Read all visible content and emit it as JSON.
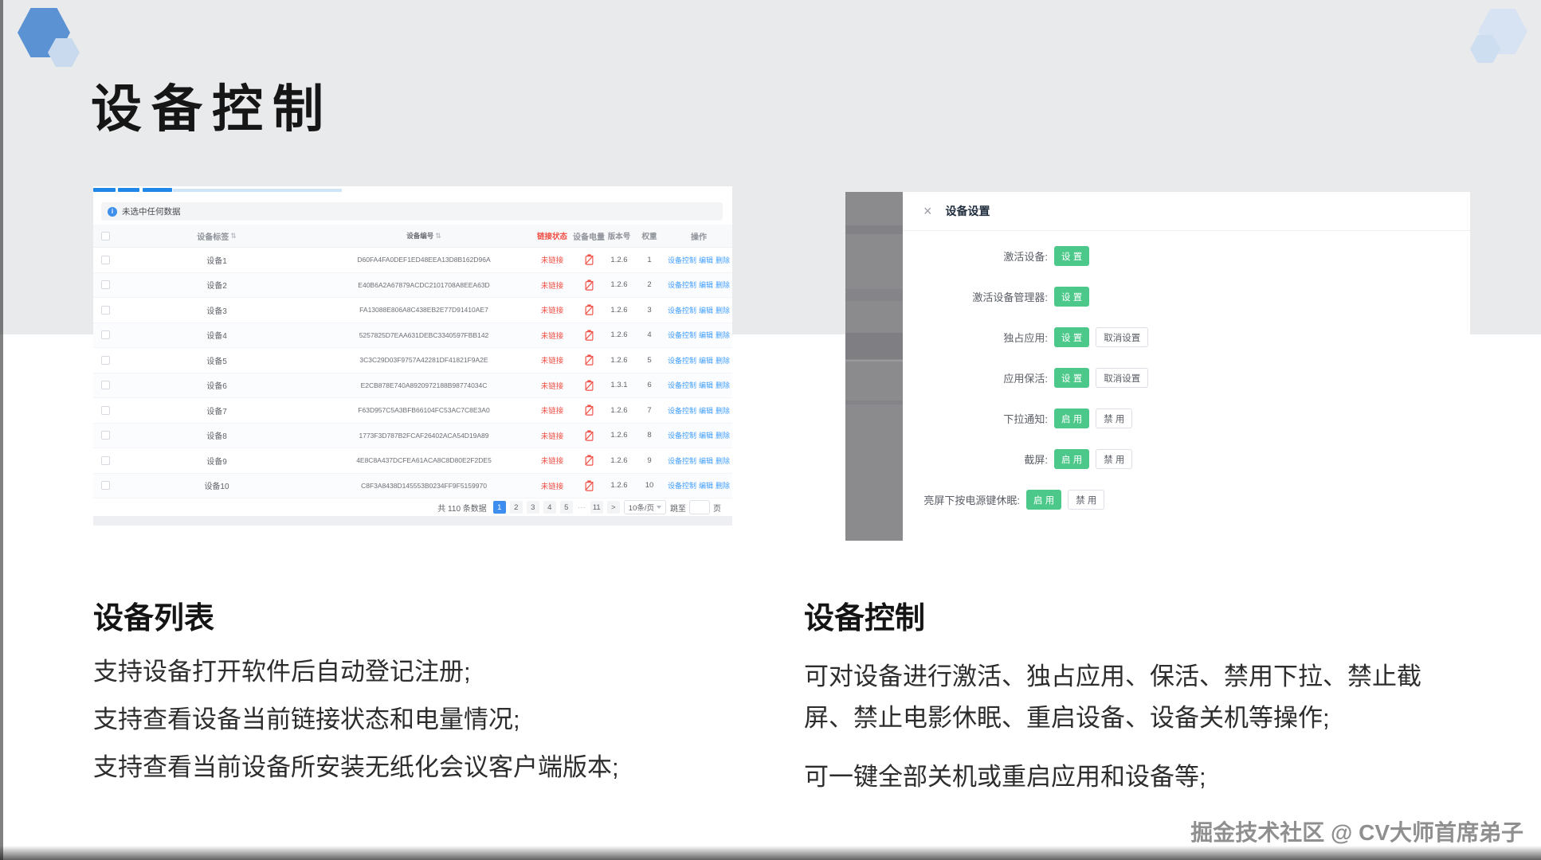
{
  "page": {
    "title": "设备控制",
    "footer": "掘金技术社区 @ CV大师首席弟子"
  },
  "colors": {
    "accent_blue": "#409eff",
    "green": "#4cc98a",
    "red": "#f04f45",
    "tab_blue": "#1e87e8"
  },
  "device_list": {
    "alert_text": "未选中任何数据",
    "columns": [
      "设备标签",
      "设备编号",
      "链接状态",
      "设备电量",
      "版本号",
      "权重",
      "操作"
    ],
    "rows": [
      {
        "label": "设备1",
        "id": "D60FA4FA0DEF1ED48EEA13D8B162D96A",
        "status": "未链接",
        "version": "1.2.6",
        "weight": "1",
        "actions": [
          "设备控制",
          "编辑",
          "删除"
        ]
      },
      {
        "label": "设备2",
        "id": "E40B6A2A67879ACDC2101708A8EEA63D",
        "status": "未链接",
        "version": "1.2.6",
        "weight": "2",
        "actions": [
          "设备控制",
          "编辑",
          "删除"
        ]
      },
      {
        "label": "设备3",
        "id": "FA13088E806A8C438EB2E77D91410AE7",
        "status": "未链接",
        "version": "1.2.6",
        "weight": "3",
        "actions": [
          "设备控制",
          "编辑",
          "删除"
        ]
      },
      {
        "label": "设备4",
        "id": "5257825D7EAA631DEBC3340597FBB142",
        "status": "未链接",
        "version": "1.2.6",
        "weight": "4",
        "actions": [
          "设备控制",
          "编辑",
          "删除"
        ]
      },
      {
        "label": "设备5",
        "id": "3C3C29D03F9757A42281DF41821F9A2E",
        "status": "未链接",
        "version": "1.2.6",
        "weight": "5",
        "actions": [
          "设备控制",
          "编辑",
          "删除"
        ]
      },
      {
        "label": "设备6",
        "id": "E2CB878E740A8920972188B98774034C",
        "status": "未链接",
        "version": "1.3.1",
        "weight": "6",
        "actions": [
          "设备控制",
          "编辑",
          "删除"
        ]
      },
      {
        "label": "设备7",
        "id": "F63D957C5A3BFB66104FC53AC7C8E3A0",
        "status": "未链接",
        "version": "1.2.6",
        "weight": "7",
        "actions": [
          "设备控制",
          "编辑",
          "删除"
        ]
      },
      {
        "label": "设备8",
        "id": "1773F3D787B2FCAF26402ACA54D19A89",
        "status": "未链接",
        "version": "1.2.6",
        "weight": "8",
        "actions": [
          "设备控制",
          "编辑",
          "删除"
        ]
      },
      {
        "label": "设备9",
        "id": "4E8C8A437DCFEA61ACA8C8D80E2F2DE5",
        "status": "未链接",
        "version": "1.2.6",
        "weight": "9",
        "actions": [
          "设备控制",
          "编辑",
          "删除"
        ]
      },
      {
        "label": "设备10",
        "id": "C8F3A8438D145553B0234FF9F5159970",
        "status": "未链接",
        "version": "1.2.6",
        "weight": "10",
        "actions": [
          "设备控制",
          "编辑",
          "删除"
        ]
      }
    ],
    "pagination": {
      "total": "共 110 条数据",
      "pages": [
        "1",
        "2",
        "3",
        "4",
        "5",
        "···",
        "11",
        ">"
      ],
      "active_index": 0,
      "page_size": "10条/页",
      "jump_label": "跳至",
      "jump_suffix": "页",
      "jump_value": ""
    }
  },
  "settings_panel": {
    "close_label": "×",
    "title": "设备设置",
    "rows": [
      {
        "label": "激活设备:",
        "buttons": [
          {
            "text": "设 置",
            "style": "green"
          }
        ]
      },
      {
        "label": "激活设备管理器:",
        "buttons": [
          {
            "text": "设 置",
            "style": "green"
          }
        ]
      },
      {
        "label": "独占应用:",
        "buttons": [
          {
            "text": "设 置",
            "style": "green"
          },
          {
            "text": "取消设置",
            "style": "plain"
          }
        ]
      },
      {
        "label": "应用保活:",
        "buttons": [
          {
            "text": "设 置",
            "style": "green"
          },
          {
            "text": "取消设置",
            "style": "plain"
          }
        ]
      },
      {
        "label": "下拉通知:",
        "buttons": [
          {
            "text": "启 用",
            "style": "green"
          },
          {
            "text": "禁 用",
            "style": "plain"
          }
        ]
      },
      {
        "label": "截屏:",
        "buttons": [
          {
            "text": "启 用",
            "style": "green"
          },
          {
            "text": "禁 用",
            "style": "plain"
          }
        ]
      },
      {
        "label": "亮屏下按电源键休眠:",
        "buttons": [
          {
            "text": "启 用",
            "style": "green"
          },
          {
            "text": "禁 用",
            "style": "plain"
          }
        ]
      }
    ]
  },
  "sections": {
    "left": {
      "heading": "设备列表",
      "lines": [
        "支持设备打开软件后自动登记注册;",
        "支持查看设备当前链接状态和电量情况;",
        "支持查看当前设备所安装无纸化会议客户端版本;"
      ]
    },
    "right": {
      "heading": "设备控制",
      "paragraphs": [
        "可对设备进行激活、独占应用、保活、禁用下拉、禁止截屏、禁止电影休眠、重启设备、设备关机等操作;",
        "可一键全部关机或重启应用和设备等;"
      ]
    }
  }
}
